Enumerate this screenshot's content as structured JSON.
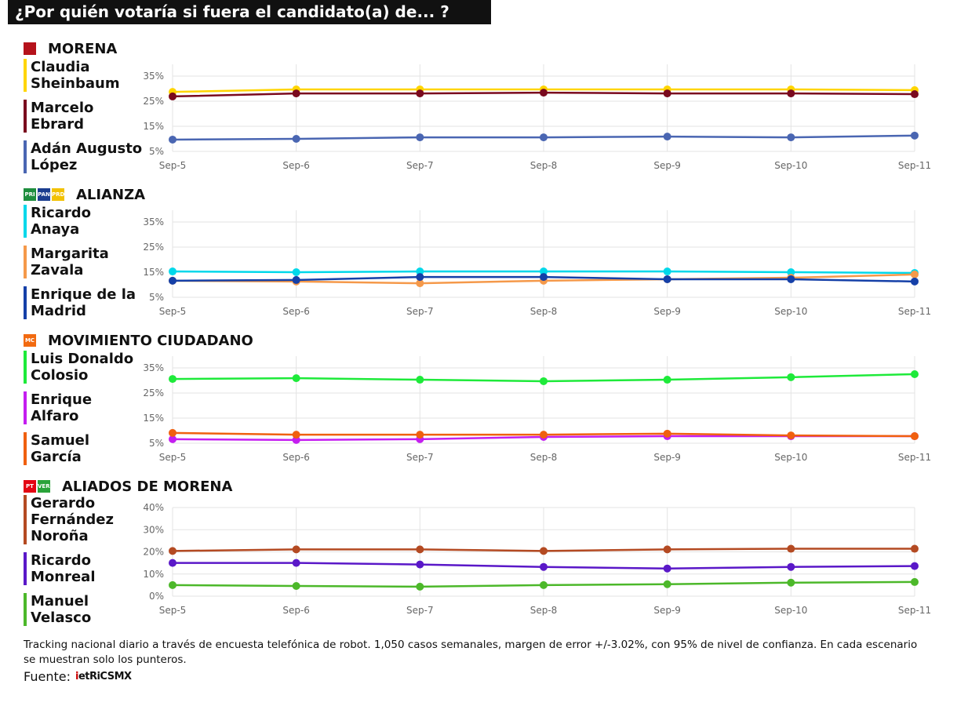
{
  "title": "¿Por quién votaría si fuera el candidato(a) de... ?",
  "chart_data": [
    {
      "type": "line",
      "party": "MORENA",
      "logos": [
        "morena"
      ],
      "x": [
        "Sep-5",
        "Sep-6",
        "Sep-7",
        "Sep-8",
        "Sep-9",
        "Sep-10",
        "Sep-11"
      ],
      "yticks": [
        "5%",
        "15%",
        "25%",
        "35%"
      ],
      "ylim": [
        5,
        40
      ],
      "series": [
        {
          "name": "Claudia Sheinbaum",
          "name_lines": [
            "Claudia",
            "Sheinbaum"
          ],
          "color": "#FFD500",
          "values": [
            28.7,
            29.7,
            29.7,
            29.7,
            29.7,
            29.7,
            29.4
          ]
        },
        {
          "name": "Marcelo Ebrard",
          "name_lines": [
            "Marcelo",
            "Ebrard"
          ],
          "color": "#7A0A1E",
          "values": [
            26.9,
            28.1,
            28.1,
            28.4,
            28.1,
            28.1,
            27.8
          ]
        },
        {
          "name": "Adán Augusto López",
          "name_lines": [
            "Adán Augusto",
            "López"
          ],
          "color": "#4A66B2",
          "values": [
            9.7,
            10.0,
            10.6,
            10.6,
            10.9,
            10.6,
            11.3
          ]
        }
      ]
    },
    {
      "type": "line",
      "party": "ALIANZA",
      "logos": [
        "pri",
        "pan",
        "prd"
      ],
      "x": [
        "Sep-5",
        "Sep-6",
        "Sep-7",
        "Sep-8",
        "Sep-9",
        "Sep-10",
        "Sep-11"
      ],
      "yticks": [
        "5%",
        "15%",
        "25%",
        "35%"
      ],
      "ylim": [
        5,
        40
      ],
      "series": [
        {
          "name": "Ricardo Anaya",
          "name_lines": [
            "Ricardo",
            "Anaya"
          ],
          "color": "#00D8EA",
          "values": [
            15.3,
            15.0,
            15.3,
            15.3,
            15.3,
            15.0,
            14.7
          ]
        },
        {
          "name": "Margarita Zavala",
          "name_lines": [
            "Margarita",
            "Zavala"
          ],
          "color": "#F5994A",
          "values": [
            11.6,
            11.3,
            10.6,
            11.6,
            12.2,
            12.8,
            14.1
          ]
        },
        {
          "name": "Enrique de la Madrid",
          "name_lines": [
            "Enrique de la",
            "Madrid"
          ],
          "color": "#1540A8",
          "values": [
            11.6,
            11.9,
            13.1,
            13.1,
            12.2,
            12.2,
            11.3
          ]
        }
      ]
    },
    {
      "type": "line",
      "party": "MOVIMIENTO CIUDADANO",
      "logos": [
        "mc"
      ],
      "x": [
        "Sep-5",
        "Sep-6",
        "Sep-7",
        "Sep-8",
        "Sep-9",
        "Sep-10",
        "Sep-11"
      ],
      "yticks": [
        "5%",
        "15%",
        "25%",
        "35%"
      ],
      "ylim": [
        5,
        40
      ],
      "series": [
        {
          "name": "Luis Donaldo Colosio",
          "name_lines": [
            "Luis Donaldo",
            "Colosio"
          ],
          "color": "#1EEA3A",
          "values": [
            30.6,
            30.9,
            30.3,
            29.7,
            30.3,
            31.3,
            32.5
          ]
        },
        {
          "name": "Enrique Alfaro",
          "name_lines": [
            "Enrique",
            "Alfaro"
          ],
          "color": "#C41EF0",
          "values": [
            6.6,
            6.3,
            6.6,
            7.5,
            7.8,
            7.8,
            7.8
          ]
        },
        {
          "name": "Samuel García",
          "name_lines": [
            "Samuel",
            "García"
          ],
          "color": "#F0600F",
          "values": [
            9.1,
            8.4,
            8.4,
            8.4,
            8.8,
            8.1,
            7.8
          ]
        }
      ]
    },
    {
      "type": "line",
      "party": "ALIADOS DE MORENA",
      "logos": [
        "pt",
        "verde"
      ],
      "x": [
        "Sep-5",
        "Sep-6",
        "Sep-7",
        "Sep-8",
        "Sep-9",
        "Sep-10",
        "Sep-11"
      ],
      "yticks": [
        "0%",
        "10%",
        "20%",
        "30%",
        "40%"
      ],
      "ylim": [
        0,
        40
      ],
      "series": [
        {
          "name": "Gerardo Fernández Noroña",
          "name_lines": [
            "Gerardo",
            "Fernández",
            "Noroña"
          ],
          "color": "#B44A22",
          "values": [
            20.4,
            21.1,
            21.1,
            20.4,
            21.1,
            21.4,
            21.4
          ]
        },
        {
          "name": "Ricardo Monreal",
          "name_lines": [
            "Ricardo",
            "Monreal"
          ],
          "color": "#5A18C8",
          "values": [
            15.0,
            15.0,
            14.3,
            13.2,
            12.5,
            13.2,
            13.6
          ]
        },
        {
          "name": "Manuel Velasco",
          "name_lines": [
            "Manuel",
            "Velasco"
          ],
          "color": "#4CB82A",
          "values": [
            5.0,
            4.6,
            4.3,
            5.0,
            5.4,
            6.1,
            6.4
          ]
        }
      ]
    }
  ],
  "logo_text": {
    "morena": "morena",
    "pri": "PRI",
    "pan": "PAN",
    "prd": "PRD",
    "mc": "MC",
    "pt": "PT",
    "verde": "VERDE"
  },
  "logo_colors": {
    "morena": "#B5121B",
    "pri": "#1E8E3E",
    "pan": "#1B3D8F",
    "prd": "#F2C100",
    "mc": "#F26A10",
    "pt": "#E30613",
    "verde": "#2AA33A"
  },
  "footnote": "Tracking nacional diario a través de encuesta telefónica de robot. 1,050 casos semanales, margen de error +/-3.02%, con 95% de nivel de confianza. En cada escenario se muestran solo los punteros.",
  "source_label": "Fuente:",
  "source_logo": "MetricsMx"
}
